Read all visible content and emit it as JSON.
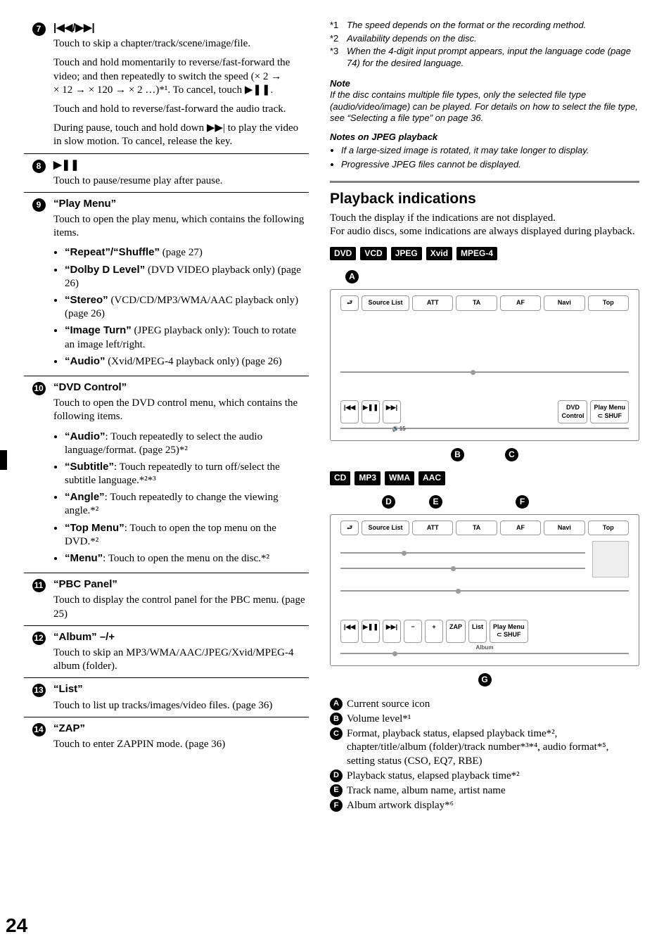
{
  "page_number": "24",
  "left": {
    "items": [
      {
        "num": "7",
        "heading_glyph": "|◀◀/▶▶|",
        "paras": [
          "Touch to skip a chapter/track/scene/image/file.",
          "Touch and hold momentarily to reverse/fast-forward the video; and then repeatedly to switch the speed (× 2 → × 12 → × 120 → × 2 …)*¹. To cancel, touch ▶❚❚.",
          "Touch and hold to reverse/fast-forward the audio track.",
          "During pause, touch and hold down ▶▶| to play the video in slow motion. To cancel, release the key."
        ]
      },
      {
        "num": "8",
        "heading_glyph": "▶❚❚",
        "paras": [
          "Touch to pause/resume play after pause."
        ]
      },
      {
        "num": "9",
        "heading": "“Play Menu”",
        "paras": [
          "Touch to open the play menu, which contains the following items."
        ],
        "bullets": [
          {
            "b": "“Repeat”/“Shuffle”",
            "t": " (page 27)"
          },
          {
            "b": "“Dolby D Level”",
            "t": " (DVD VIDEO playback only) (page 26)"
          },
          {
            "b": "“Stereo”",
            "t": " (VCD/CD/MP3/WMA/AAC playback only) (page 26)"
          },
          {
            "b": "“Image Turn”",
            "t": " (JPEG playback only): Touch to rotate an image left/right."
          },
          {
            "b": "“Audio”",
            "t": " (Xvid/MPEG-4 playback only) (page 26)"
          }
        ]
      },
      {
        "num": "10",
        "heading": "“DVD Control”",
        "paras": [
          "Touch to open the DVD control menu, which contains the following items."
        ],
        "bullets": [
          {
            "b": "“Audio”",
            "t": ": Touch repeatedly to select the audio language/format. (page 25)*²"
          },
          {
            "b": "“Subtitle”",
            "t": ": Touch repeatedly to turn off/select the subtitle language.*²*³"
          },
          {
            "b": "“Angle”",
            "t": ": Touch repeatedly to change the viewing angle.*²"
          },
          {
            "b": "“Top Menu”",
            "t": ": Touch to open the top menu on the DVD.*²"
          },
          {
            "b": "“Menu”",
            "t": ": Touch to open the menu on the disc.*²"
          }
        ]
      },
      {
        "num": "11",
        "heading": "“PBC Panel”",
        "paras": [
          "Touch to display the control panel for the PBC menu. (page 25)"
        ]
      },
      {
        "num": "12",
        "heading": "“Album” –/+",
        "paras": [
          "Touch to skip an MP3/WMA/AAC/JPEG/Xvid/MPEG-4 album (folder)."
        ]
      },
      {
        "num": "13",
        "heading": "“List”",
        "paras": [
          "Touch to list up tracks/images/video files. (page 36)"
        ]
      },
      {
        "num": "14",
        "heading": "“ZAP”",
        "paras": [
          "Touch to enter ZAPPIN mode. (page 36)"
        ]
      }
    ]
  },
  "right": {
    "footnotes": [
      {
        "n": "*1",
        "t": "The speed depends on the format or the recording method."
      },
      {
        "n": "*2",
        "t": "Availability depends on the disc."
      },
      {
        "n": "*3",
        "t": "When the 4-digit input prompt appears, input the language code (page 74) for the desired language."
      }
    ],
    "note_title": "Note",
    "note_body": "If the disc contains multiple file types, only the selected file type (audio/video/image) can be played. For details on how to select the file type, see “Selecting a file type” on page 36.",
    "jpeg_title": "Notes on JPEG playback",
    "jpeg_bullets": [
      "If a large-sized image is rotated, it may take longer to display.",
      "Progressive JPEG files cannot be displayed."
    ],
    "section_title": "Playback indications",
    "section_body": "Touch the display if the indications are not displayed.\nFor audio discs, some indications are always displayed during playback.",
    "tags1": [
      "DVD",
      "VCD",
      "JPEG",
      "Xvid",
      "MPEG-4"
    ],
    "tags2": [
      "CD",
      "MP3",
      "WMA",
      "AAC"
    ],
    "diagram": {
      "top_buttons": [
        "Source List",
        "ATT",
        "TA",
        "AF",
        "Navi",
        "Top"
      ],
      "transport": [
        "|◀◀",
        "▶❚❚",
        "▶▶|"
      ],
      "dvd_ctrl": "DVD\nControl",
      "playmenu": "Play Menu\n⊂ SHUF",
      "vol": "15",
      "album_minus": "−",
      "album_plus": "+",
      "album_lbl": "Album",
      "zap": "ZAP",
      "list": "List"
    },
    "callouts_top": [
      "A"
    ],
    "callouts_mid": [
      "B",
      "C"
    ],
    "callouts2": [
      "D",
      "E",
      "F"
    ],
    "callouts_bottom": [
      "G"
    ],
    "legend": [
      {
        "l": "A",
        "t": "Current source icon"
      },
      {
        "l": "B",
        "t": "Volume level*¹"
      },
      {
        "l": "C",
        "t": "Format, playback status, elapsed playback time*², chapter/title/album (folder)/track number*³*⁴, audio format*⁵, setting status (CSO, EQ7, RBE)"
      },
      {
        "l": "D",
        "t": "Playback status, elapsed playback time*²"
      },
      {
        "l": "E",
        "t": "Track name, album name, artist name"
      },
      {
        "l": "F",
        "t": "Album artwork display*⁶"
      }
    ]
  }
}
